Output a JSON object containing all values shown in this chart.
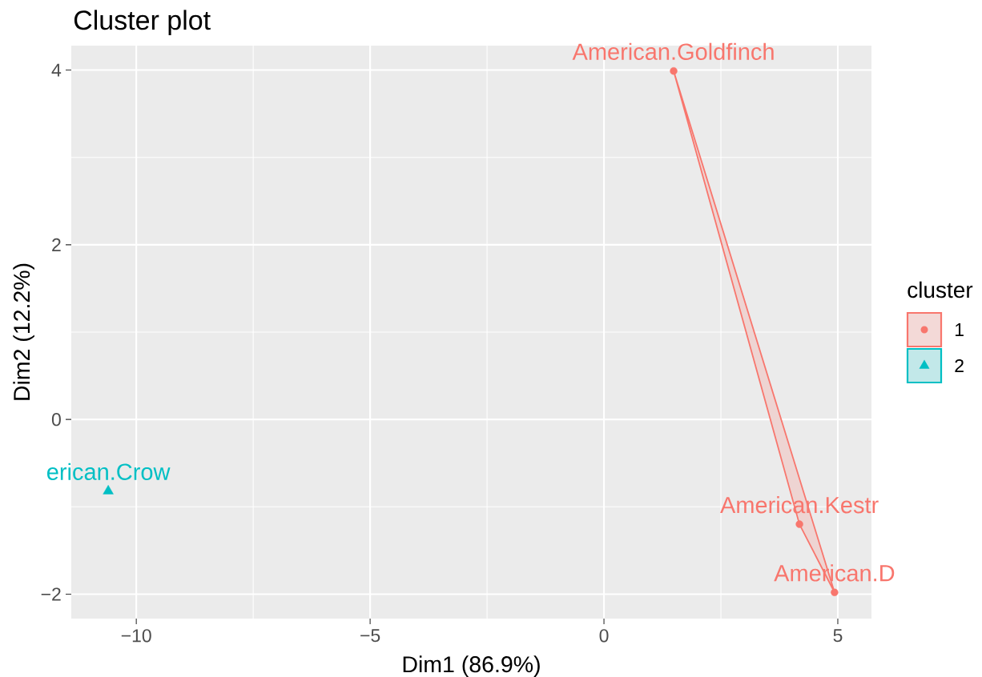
{
  "chart_data": {
    "type": "scatter",
    "title": "Cluster plot",
    "xlabel": "Dim1 (86.9%)",
    "ylabel": "Dim2 (12.2%)",
    "legend_title": "cluster",
    "legend": "right",
    "grid": true,
    "xlim": [
      -11.39,
      5.72
    ],
    "ylim": [
      -2.28,
      4.28
    ],
    "xticks": [
      {
        "value": -10,
        "label": "−10"
      },
      {
        "value": -5,
        "label": "−5"
      },
      0,
      5
    ],
    "yticks": [
      {
        "value": -2,
        "label": "−2"
      },
      0,
      2,
      4
    ],
    "series": [
      {
        "name": "1",
        "type": "scatter",
        "color": "#f8766d",
        "marker": "circle",
        "x": [
          1.49,
          4.18,
          4.93
        ],
        "values": [
          3.99,
          -1.2,
          -1.98
        ]
      },
      {
        "name": "2",
        "type": "scatter",
        "color": "#00bfc4",
        "marker": "triangle",
        "x": [
          -10.6
        ],
        "values": [
          -0.82
        ]
      },
      {
        "type": "area",
        "color": "#f8766d",
        "x": [
          1.49,
          4.93,
          4.18,
          1.49
        ],
        "values": [
          3.99,
          -1.98,
          -1.2,
          3.99
        ]
      }
    ],
    "annotations": [
      {
        "text": "American.Goldfinch",
        "x": 1.49,
        "y": 3.99
      },
      {
        "text": "American.Kestr",
        "x": 4.18,
        "y": -1.2
      },
      {
        "text": "American.D",
        "x": 4.93,
        "y": -1.98
      },
      {
        "text": "erican.Crow",
        "x": -10.6,
        "y": -0.82
      }
    ]
  }
}
